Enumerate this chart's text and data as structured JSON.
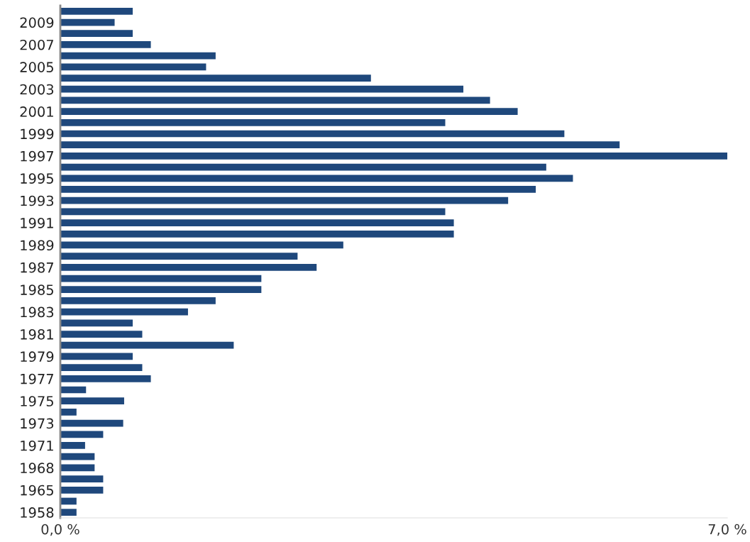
{
  "chart_data": {
    "type": "bar",
    "orientation": "horizontal",
    "color": "#1f487c",
    "categories": [
      null,
      "2009",
      null,
      "2007",
      null,
      "2005",
      null,
      "2003",
      null,
      "2001",
      null,
      "1999",
      null,
      "1997",
      null,
      "1995",
      null,
      "1993",
      null,
      "1991",
      null,
      "1989",
      null,
      "1987",
      null,
      "1985",
      null,
      "1983",
      null,
      "1981",
      null,
      "1979",
      null,
      "1977",
      null,
      "1975",
      null,
      "1973",
      null,
      "1971",
      null,
      "1968",
      null,
      "1965",
      null,
      "1958"
    ],
    "values": [
      0.76,
      0.57,
      0.76,
      0.95,
      1.63,
      1.53,
      3.26,
      4.23,
      4.51,
      4.8,
      4.04,
      5.29,
      5.87,
      7.0,
      5.1,
      5.38,
      4.99,
      4.7,
      4.04,
      4.13,
      4.13,
      2.97,
      2.49,
      2.69,
      2.11,
      2.11,
      1.63,
      1.34,
      0.76,
      0.86,
      1.82,
      0.76,
      0.86,
      0.95,
      0.27,
      0.67,
      0.17,
      0.66,
      0.45,
      0.26,
      0.36,
      0.36,
      0.45,
      0.45,
      0.17,
      0.17
    ],
    "xlim": [
      0,
      7.0
    ],
    "xticks": [
      {
        "value": 0,
        "label": "0,0 %"
      },
      {
        "value": 7.0,
        "label": "7,0 %"
      }
    ],
    "grid": false,
    "legend": false
  }
}
